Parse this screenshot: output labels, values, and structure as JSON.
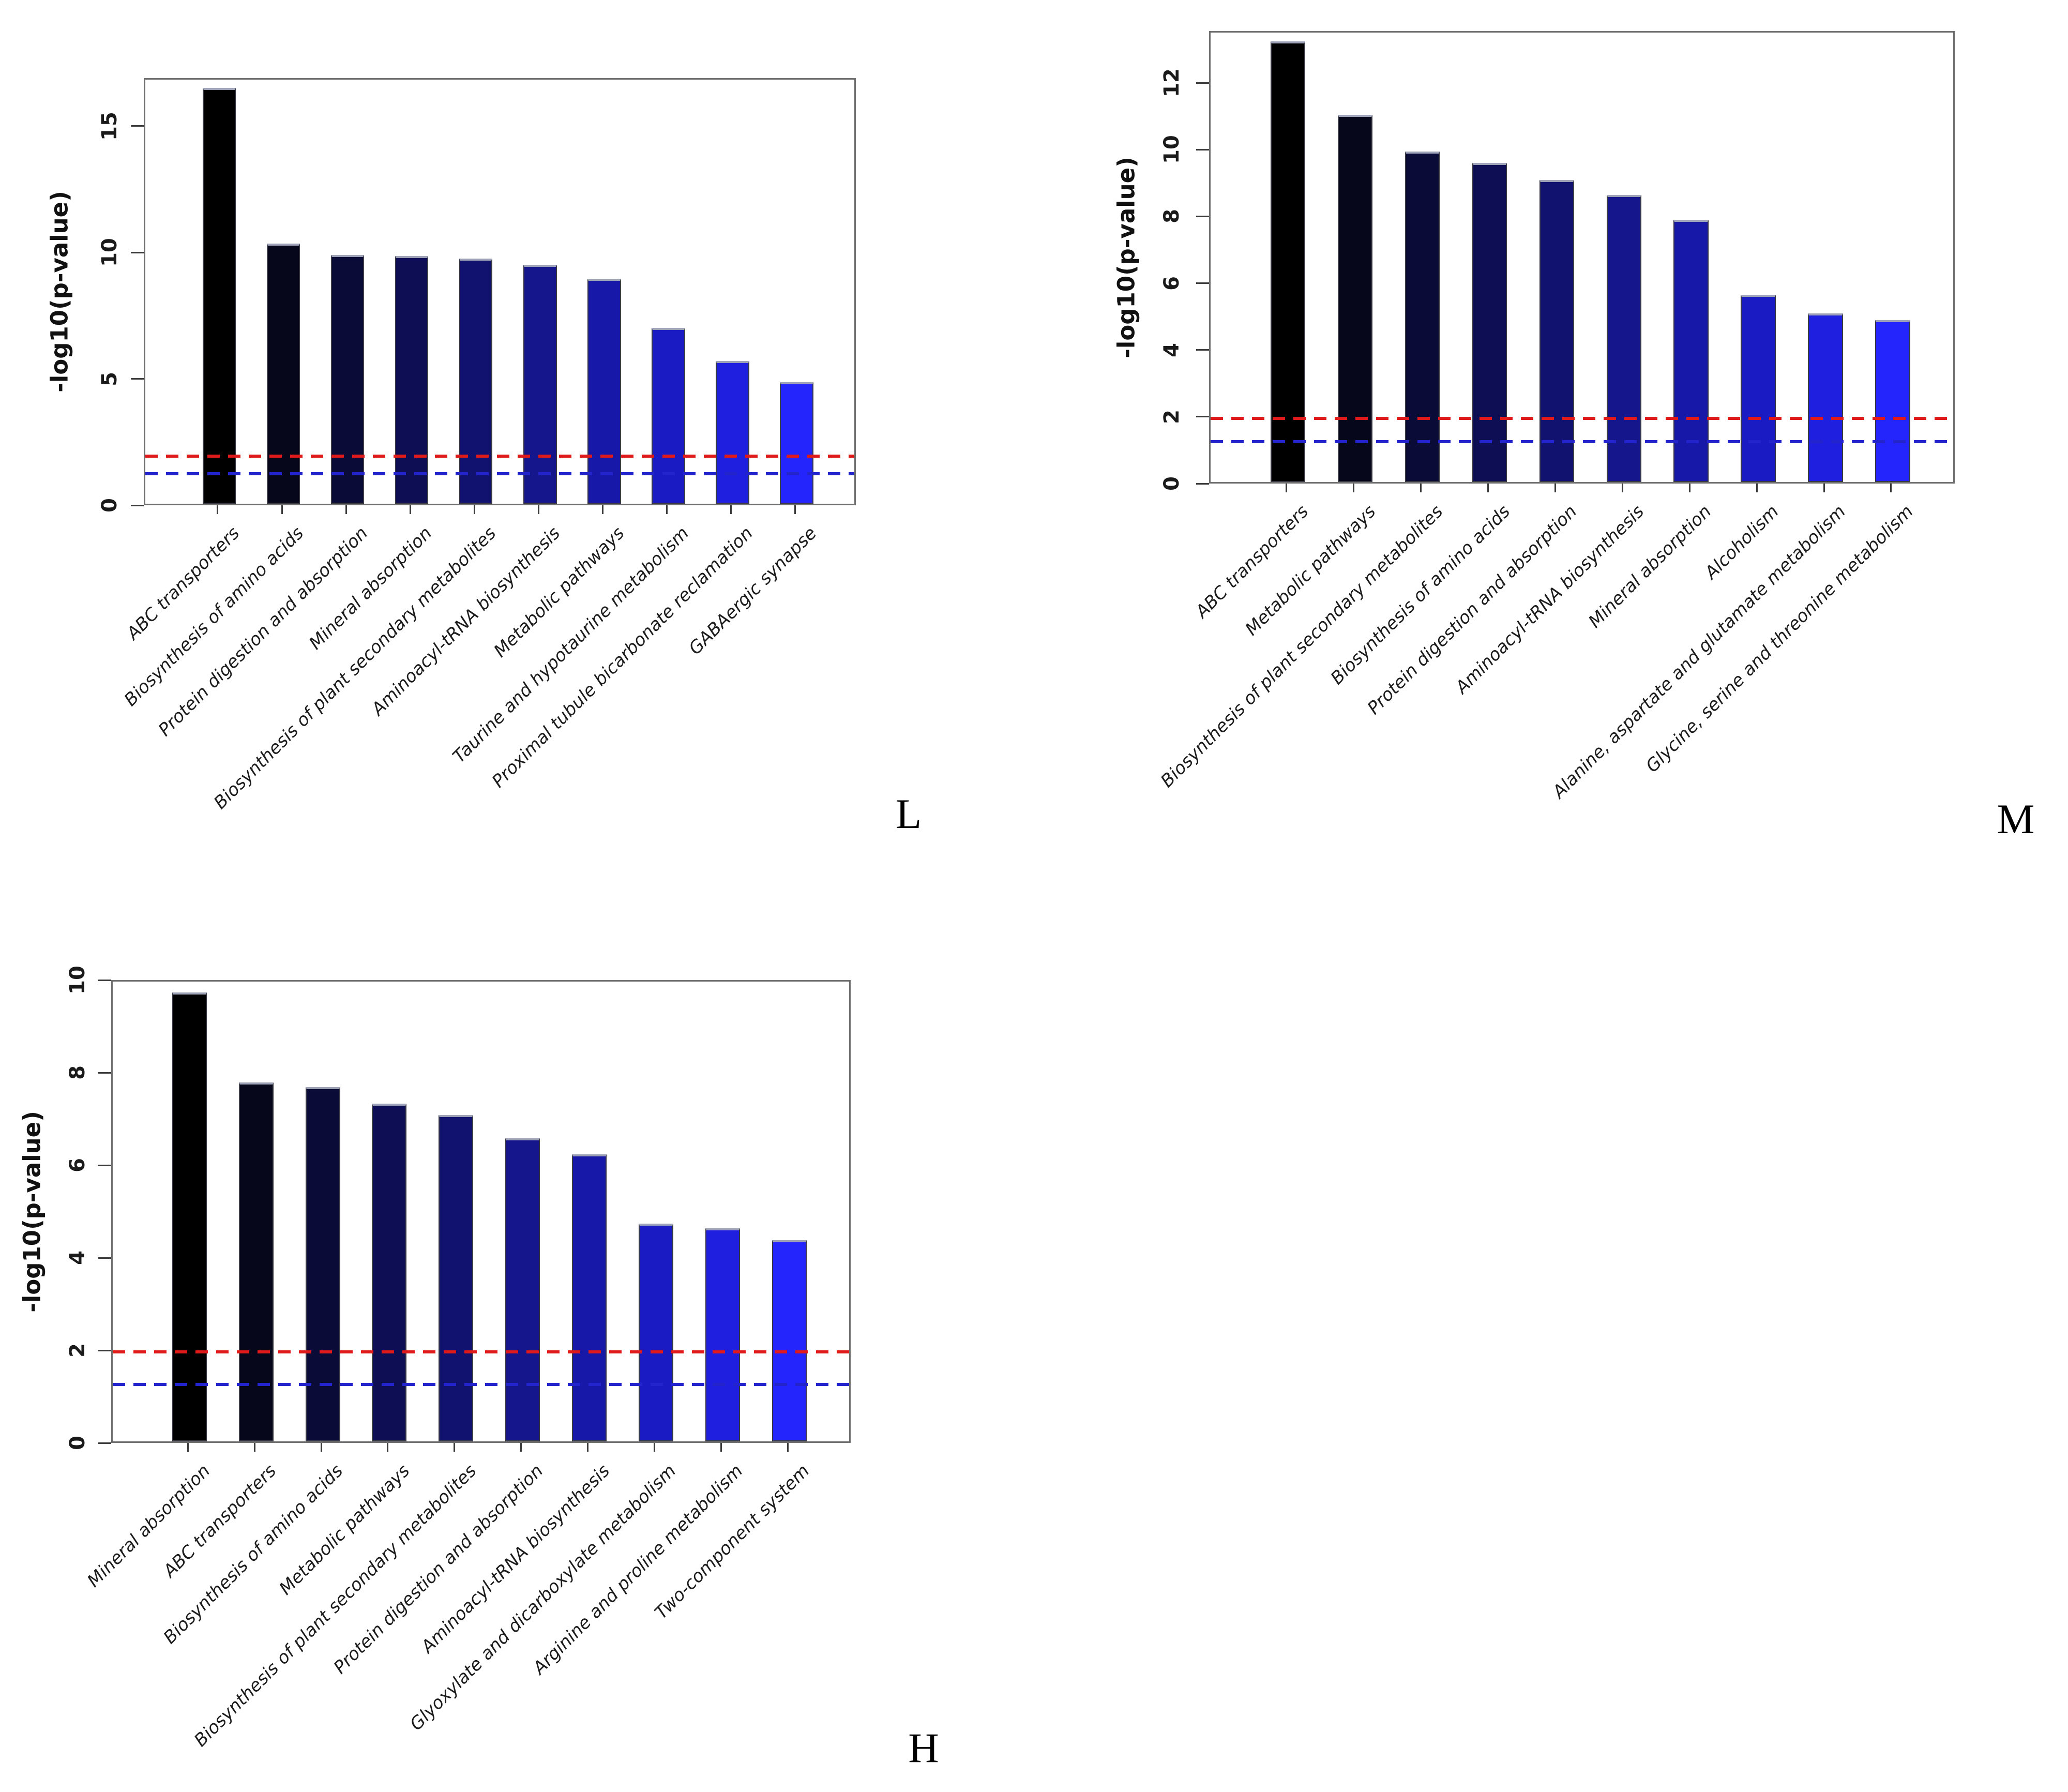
{
  "figure": {
    "description": "Three KEGG pathway enrichment bar charts",
    "red_threshold_color": "#e01a1a",
    "blue_threshold_color": "#2424cc",
    "frame_color": "#707070",
    "bar_gradient": [
      "#000000",
      "#07071c",
      "#0b0b38",
      "#0e0e54",
      "#111170",
      "#15158c",
      "#1818a8",
      "#1b1bc4",
      "#1f1fe0",
      "#2424fc"
    ]
  },
  "chart_data": [
    {
      "type": "bar",
      "panel_label": "L",
      "ylabel": "-log10(p-value)",
      "categories": [
        "ABC transporters",
        "Biosynthesis of amino acids",
        "Protein digestion and absorption",
        "Mineral absorption",
        "Biosynthesis of plant secondary metabolites",
        "Aminoacyl-tRNA biosynthesis",
        "Metabolic pathways",
        "Taurine and hypotaurine metabolism",
        "Proximal tubule bicarbonate reclamation",
        "GABAergic synapse"
      ],
      "values": [
        16.45,
        10.3,
        9.85,
        9.8,
        9.7,
        9.45,
        8.9,
        6.95,
        5.65,
        4.8
      ],
      "yticks": [
        0,
        5,
        10,
        15
      ],
      "ylim": [
        0,
        16.9
      ],
      "grid": false,
      "legend": "none",
      "hlines": [
        {
          "y": 2.0,
          "color": "#e01a1a",
          "style": "dashed"
        },
        {
          "y": 1.3,
          "color": "#2424cc",
          "style": "dashed"
        }
      ]
    },
    {
      "type": "bar",
      "panel_label": "M",
      "ylabel": "-log10(p-value)",
      "categories": [
        "ABC transporters",
        "Metabolic pathways",
        "Biosynthesis of plant secondary metabolites",
        "Biosynthesis of amino acids",
        "Protein digestion and absorption",
        "Aminoacyl-tRNA biosynthesis",
        "Mineral absorption",
        "Alcoholism",
        "Alanine, aspartate and glutamate metabolism",
        "Glycine, serine and threonine metabolism"
      ],
      "values": [
        13.2,
        11.0,
        9.9,
        9.55,
        9.05,
        8.6,
        7.85,
        5.6,
        5.05,
        4.85
      ],
      "yticks": [
        0,
        2,
        4,
        6,
        8,
        10,
        12
      ],
      "ylim": [
        0,
        13.55
      ],
      "grid": false,
      "legend": "none",
      "hlines": [
        {
          "y": 2.0,
          "color": "#e01a1a",
          "style": "dashed"
        },
        {
          "y": 1.3,
          "color": "#2424cc",
          "style": "dashed"
        }
      ]
    },
    {
      "type": "bar",
      "panel_label": "H",
      "ylabel": "-log10(p-value)",
      "categories": [
        "Mineral absorption",
        "ABC transporters",
        "Biosynthesis of amino acids",
        "Metabolic pathways",
        "Biosynthesis of plant secondary metabolites",
        "Protein digestion and absorption",
        "Aminoacyl-tRNA biosynthesis",
        "Glyoxylate and dicarboxylate metabolism",
        "Arginine and proline metabolism",
        "Two-component system"
      ],
      "values": [
        9.7,
        7.75,
        7.65,
        7.3,
        7.05,
        6.55,
        6.2,
        4.7,
        4.6,
        4.35
      ],
      "yticks": [
        0,
        2,
        4,
        6,
        8,
        10
      ],
      "ylim": [
        0,
        10.0
      ],
      "grid": false,
      "legend": "none",
      "hlines": [
        {
          "y": 2.0,
          "color": "#e01a1a",
          "style": "dashed"
        },
        {
          "y": 1.3,
          "color": "#2424cc",
          "style": "dashed"
        }
      ]
    }
  ]
}
